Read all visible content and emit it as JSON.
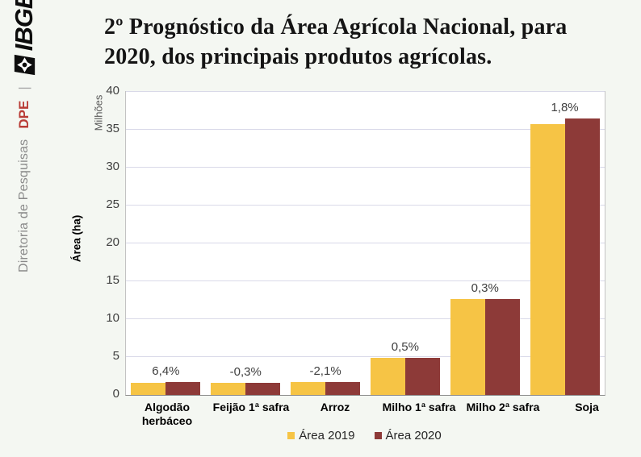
{
  "brand": {
    "department": "Diretoria de Pesquisas",
    "acronym": "DPE",
    "divider": "|",
    "logo_text": "IBGE"
  },
  "title": {
    "line1": "2º Prognóstico da Área Agrícola Nacional, para",
    "line2": "2020, dos principais produtos agrícolas."
  },
  "chart_data": {
    "type": "bar",
    "title": "2º Prognóstico da Área Agrícola Nacional, para 2020, dos principais produtos agrícolas.",
    "xlabel": "",
    "ylabel": "Área (ha)",
    "y_display_unit": "Milhões",
    "ylim": [
      0,
      40
    ],
    "yticks": [
      0,
      5,
      10,
      15,
      20,
      25,
      30,
      35,
      40
    ],
    "grid": true,
    "legend_position": "bottom",
    "categories": [
      "Algodão herbáceo",
      "Feijão 1ª safra",
      "Arroz",
      "Milho 1ª safra",
      "Milho 2ª safra",
      "Soja"
    ],
    "series": [
      {
        "name": "Área 2019",
        "color": "#F6C445",
        "values": [
          1.62,
          1.57,
          1.7,
          4.88,
          12.65,
          35.79
        ]
      },
      {
        "name": "Área 2020",
        "color": "#8D3A38",
        "values": [
          1.72,
          1.56,
          1.66,
          4.9,
          12.69,
          36.44
        ]
      }
    ],
    "change_labels": [
      "6,4%",
      "-0,3%",
      "-2,1%",
      "0,5%",
      "0,3%",
      "1,8%"
    ]
  },
  "colors": {
    "background": "#F4F7F2",
    "plot_background": "#FFFFFF",
    "gridline": "#D9D9E8",
    "axis_text": "#404040",
    "dpe_red": "#B93C36",
    "department_gray": "#8A8A8A",
    "area_2019": "#F6C445",
    "area_2020": "#8D3A38"
  }
}
